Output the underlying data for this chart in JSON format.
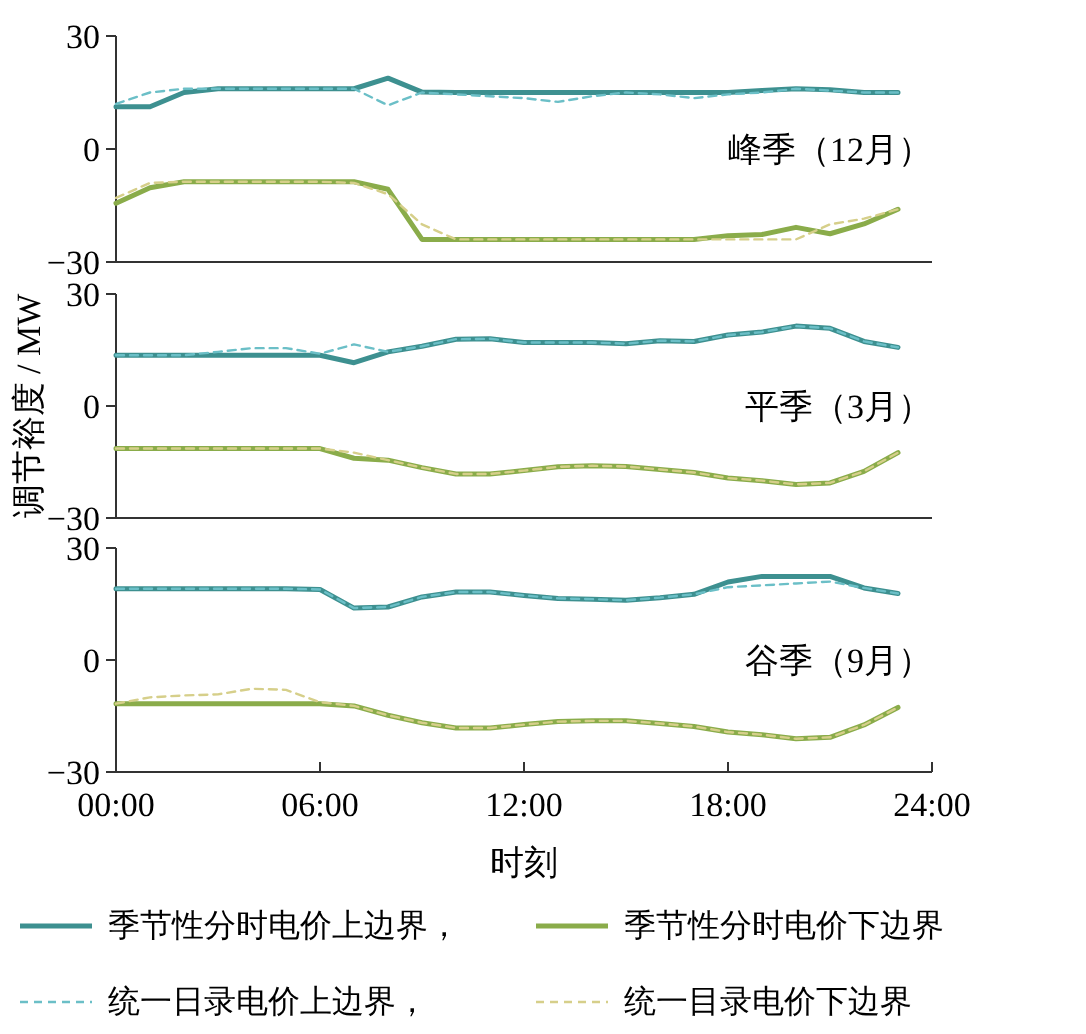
{
  "chart_data": [
    {
      "type": "line",
      "annotations": [
        "峰季（12月）"
      ],
      "tick_labels": "y",
      "x": [
        0,
        1,
        2,
        3,
        4,
        5,
        6,
        7,
        8,
        9,
        10,
        11,
        12,
        13,
        14,
        15,
        16,
        17,
        18,
        19,
        20,
        21,
        22,
        23
      ],
      "xlim": [
        0,
        24
      ],
      "ylim": [
        -30,
        30
      ],
      "yticks": [
        -30,
        0,
        30
      ],
      "series": [
        {
          "color": "#3d9090",
          "line_style": "solid",
          "values": [
            11.2,
            11.2,
            15,
            16,
            16,
            16,
            16,
            16,
            18.8,
            15.1,
            15,
            15,
            15,
            15,
            15,
            15,
            15,
            15,
            15,
            15.5,
            16,
            15.7,
            15,
            15
          ]
        },
        {
          "color": "#8aac4a",
          "line_style": "solid",
          "values": [
            -14.4,
            -10.3,
            -8.7,
            -8.7,
            -8.7,
            -8.7,
            -8.7,
            -8.7,
            -10.7,
            -24,
            -24,
            -24,
            -24,
            -24,
            -24,
            -24,
            -24,
            -24,
            -23,
            -22.7,
            -20.8,
            -22.5,
            -19.9,
            -16
          ]
        },
        {
          "color": "#6bbfc7",
          "line_style": "dashed",
          "values": [
            12,
            15,
            16,
            16,
            16,
            16,
            16,
            16,
            11.6,
            15,
            14.5,
            14,
            13.5,
            12.5,
            14,
            15,
            14.5,
            13.5,
            14.5,
            15,
            16,
            15.5,
            15,
            15
          ]
        },
        {
          "color": "#d6cf8a",
          "line_style": "dashed",
          "values": [
            -13,
            -9,
            -8.7,
            -8.7,
            -8.7,
            -8.7,
            -8.7,
            -9,
            -12,
            -20,
            -24,
            -24,
            -24,
            -24,
            -24,
            -24,
            -24,
            -24,
            -24,
            -24,
            -24,
            -20,
            -18.5,
            -16
          ]
        }
      ]
    },
    {
      "type": "line",
      "ylabel": "调节裕度 / MW",
      "annotations": [
        "平季（3月）"
      ],
      "tick_labels": "y",
      "x": [
        0,
        1,
        2,
        3,
        4,
        5,
        6,
        7,
        8,
        9,
        10,
        11,
        12,
        13,
        14,
        15,
        16,
        17,
        18,
        19,
        20,
        21,
        22,
        23
      ],
      "xlim": [
        0,
        24
      ],
      "ylim": [
        -30,
        30
      ],
      "yticks": [
        -30,
        0,
        30
      ],
      "series": [
        {
          "color": "#3d9090",
          "line_style": "solid",
          "values": [
            13.6,
            13.6,
            13.6,
            13.6,
            13.6,
            13.6,
            13.6,
            11.6,
            14.5,
            16,
            17.9,
            18,
            17,
            17,
            17,
            16.7,
            17.5,
            17.3,
            19,
            19.8,
            21.4,
            20.8,
            17.3,
            15.7
          ]
        },
        {
          "color": "#8aac4a",
          "line_style": "solid",
          "values": [
            -11.4,
            -11.4,
            -11.4,
            -11.4,
            -11.4,
            -11.4,
            -11.4,
            -14,
            -14.5,
            -16.5,
            -18.2,
            -18.2,
            -17.3,
            -16.3,
            -16,
            -16.2,
            -17,
            -17.8,
            -19.3,
            -20,
            -21,
            -20.6,
            -17.5,
            -12.5
          ]
        },
        {
          "color": "#6bbfc7",
          "line_style": "dashed",
          "values": [
            13.6,
            13.6,
            13.6,
            14.5,
            15.5,
            15.5,
            14,
            16.5,
            14.5,
            16,
            17.9,
            18,
            17,
            17,
            17,
            16.7,
            17.5,
            17.3,
            19,
            19.8,
            21.4,
            20.8,
            17.3,
            15.7
          ]
        },
        {
          "color": "#d6cf8a",
          "line_style": "dashed",
          "values": [
            -11.4,
            -11.4,
            -11.4,
            -11.4,
            -11.4,
            -11.4,
            -11.4,
            -12.5,
            -14.5,
            -16.5,
            -18.2,
            -18.2,
            -17.3,
            -16.3,
            -16,
            -16.2,
            -17,
            -17.8,
            -19.3,
            -20,
            -21,
            -20.6,
            -17.5,
            -12.5
          ]
        }
      ]
    },
    {
      "type": "line",
      "xlabel": "时刻",
      "annotations": [
        "谷季（9月）"
      ],
      "legend": "bottom",
      "x": [
        0,
        1,
        2,
        3,
        4,
        5,
        6,
        7,
        8,
        9,
        10,
        11,
        12,
        13,
        14,
        15,
        16,
        17,
        18,
        19,
        20,
        21,
        22,
        23
      ],
      "xlim": [
        0,
        24
      ],
      "xticks": [
        {
          "value": 0,
          "label": "00:00"
        },
        {
          "value": 6,
          "label": "06:00"
        },
        {
          "value": 12,
          "label": "12:00"
        },
        {
          "value": 18,
          "label": "18:00"
        },
        {
          "value": 24,
          "label": "24:00"
        }
      ],
      "ylim": [
        -30,
        30
      ],
      "yticks": [
        -30,
        0,
        30
      ],
      "series": [
        {
          "name": "季节性分时电价上边界，",
          "color": "#3d9090",
          "line_style": "solid",
          "values": [
            19.1,
            19.1,
            19.1,
            19.1,
            19.1,
            19.1,
            18.9,
            13.9,
            14.2,
            16.9,
            18.2,
            18.2,
            17.3,
            16.5,
            16.3,
            16,
            16.7,
            17.6,
            20.9,
            22.4,
            22.4,
            22.4,
            19.3,
            17.8
          ]
        },
        {
          "name": "季节性分时电价下边界",
          "color": "#8aac4a",
          "line_style": "solid",
          "values": [
            -11.7,
            -11.7,
            -11.7,
            -11.7,
            -11.7,
            -11.7,
            -11.7,
            -12.3,
            -14.8,
            -16.8,
            -18.2,
            -18.2,
            -17.3,
            -16.5,
            -16.3,
            -16.3,
            -17,
            -17.8,
            -19.3,
            -20,
            -21.1,
            -20.7,
            -17.4,
            -12.7
          ]
        },
        {
          "name": "统一日录电价上边界，",
          "color": "#6bbfc7",
          "line_style": "dashed",
          "values": [
            19.1,
            19.1,
            19.1,
            19.1,
            19.1,
            19.1,
            18.9,
            13.9,
            14.2,
            16.9,
            18.2,
            18.2,
            17.3,
            16.5,
            16.3,
            16,
            16.7,
            17.6,
            19.5,
            20,
            20.5,
            21,
            19.3,
            17.8
          ]
        },
        {
          "name": "统一目录电价下边界",
          "color": "#d6cf8a",
          "line_style": "dashed",
          "values": [
            -11.7,
            -10,
            -9.5,
            -9.2,
            -7.7,
            -8,
            -11.3,
            -12.3,
            -14.8,
            -16.8,
            -18.2,
            -18.2,
            -17.3,
            -16.5,
            -16.3,
            -16.3,
            -17,
            -17.8,
            -19.3,
            -20,
            -21.1,
            -20.7,
            -17.4,
            -12.7
          ]
        }
      ]
    }
  ]
}
